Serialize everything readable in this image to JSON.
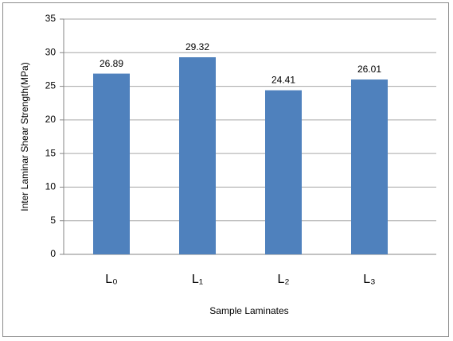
{
  "chart_data": {
    "type": "bar",
    "y_label": "Inter Laminar Shear Strength(MPa)",
    "x_label": "Sample Laminates",
    "categories": [
      "L₀",
      "L₁",
      "L₂",
      "L₃"
    ],
    "values": [
      26.89,
      29.32,
      24.41,
      26.01
    ],
    "color": "#4f81bd",
    "ylim": [
      0,
      35
    ],
    "yticks": [
      0,
      5,
      10,
      15,
      20,
      25,
      30,
      35
    ],
    "grid": true
  }
}
